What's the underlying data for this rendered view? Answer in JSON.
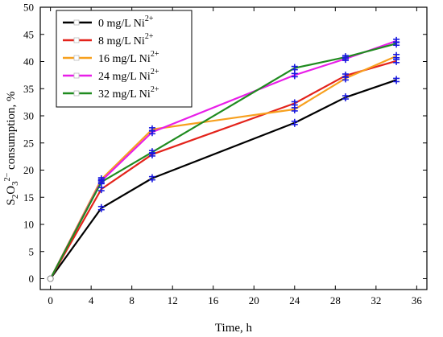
{
  "chart_data": {
    "type": "line",
    "xlabel": "Time, h",
    "ylabel": {
      "parts": [
        {
          "text": "S",
          "style": "normal"
        },
        {
          "text": "2",
          "style": "sub"
        },
        {
          "text": "O",
          "style": "normal"
        },
        {
          "text": "3",
          "style": "sub"
        },
        {
          "text": "2−",
          "style": "sup"
        },
        {
          "text": " consumption, %",
          "style": "normal"
        }
      ]
    },
    "xlim": [
      -1,
      37
    ],
    "ylim": [
      -2,
      50
    ],
    "xticks": [
      0,
      4,
      8,
      12,
      16,
      20,
      24,
      28,
      32,
      36
    ],
    "yticks": [
      0,
      5,
      10,
      15,
      20,
      25,
      30,
      35,
      40,
      45,
      50
    ],
    "grid": false,
    "legend_position": "top-left",
    "series": [
      {
        "name": "0 mg/L Ni",
        "name_sup": "2+",
        "color": "#000000",
        "x": [
          0,
          5,
          10,
          24,
          29,
          34
        ],
        "y": [
          0,
          13.0,
          18.5,
          28.7,
          33.4,
          36.6
        ]
      },
      {
        "name": "8 mg/L Ni",
        "name_sup": "2+",
        "color": "#e3231b",
        "x": [
          0,
          5,
          10,
          24,
          29,
          34
        ],
        "y": [
          0,
          16.5,
          22.9,
          32.3,
          37.4,
          40.1
        ]
      },
      {
        "name": "16 mg/L Ni",
        "name_sup": "2+",
        "color": "#f7a01e",
        "x": [
          0,
          5,
          10,
          24,
          29,
          34
        ],
        "y": [
          0,
          18.3,
          27.5,
          31.2,
          36.9,
          41.0
        ]
      },
      {
        "name": "24 mg/L Ni",
        "name_sup": "2+",
        "color": "#e81ee8",
        "x": [
          0,
          5,
          10,
          24,
          29,
          34
        ],
        "y": [
          0,
          18.0,
          27.0,
          37.5,
          40.5,
          43.8
        ]
      },
      {
        "name": "32 mg/L Ni",
        "name_sup": "2+",
        "color": "#1f8b1f",
        "x": [
          0,
          5,
          10,
          24,
          29,
          34
        ],
        "y": [
          0,
          17.8,
          23.3,
          38.8,
          40.8,
          43.3
        ]
      }
    ],
    "marker_color": "#1a1adf"
  }
}
